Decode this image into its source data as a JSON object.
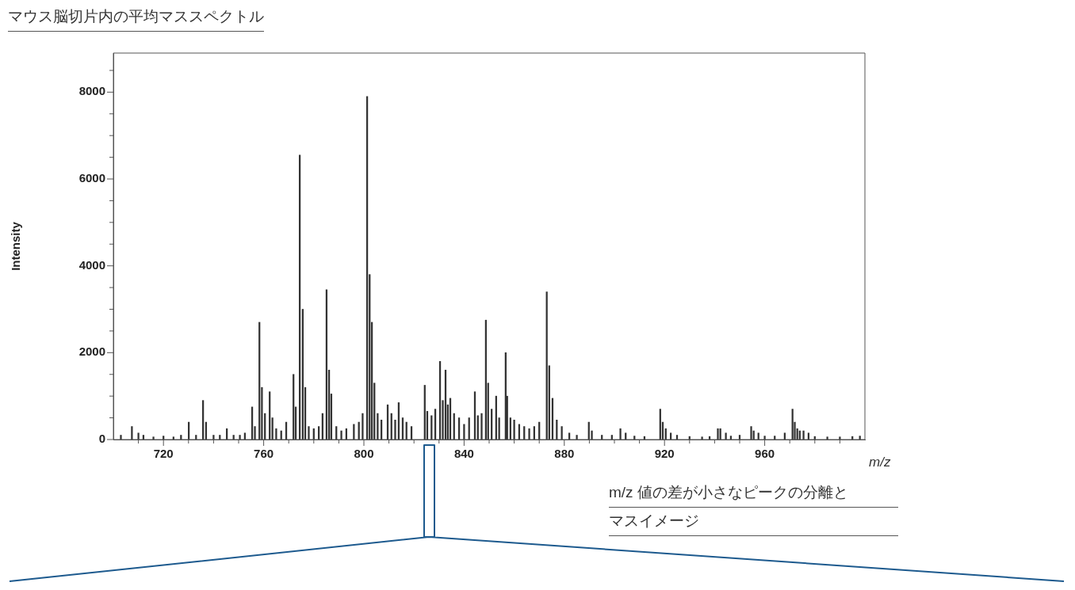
{
  "chart_data": {
    "type": "bar",
    "title": "マウス脳切片内の平均マススペクトル",
    "xlabel": "m/z",
    "ylabel": "Intensity",
    "annotations": [
      "m/z 値の差が小さなピークの分離と",
      "マスイメージ"
    ],
    "x": [
      703,
      707.4,
      710,
      712,
      716,
      720,
      724,
      727,
      730.1,
      733,
      735.8,
      737,
      740,
      742.5,
      745.3,
      748,
      750.5,
      752.5,
      755.4,
      756.5,
      758.3,
      759.3,
      760.5,
      762.4,
      763.5,
      765,
      767,
      769,
      771.9,
      772.8,
      774.4,
      775.6,
      776.6,
      778,
      780,
      782,
      783.5,
      785.1,
      786.1,
      787,
      789,
      791,
      793,
      796,
      798,
      799.5,
      801.3,
      802.3,
      803.2,
      804.2,
      805.5,
      807,
      809.5,
      811,
      812.5,
      813.9,
      815.5,
      817,
      819,
      824.3,
      825.3,
      827,
      828.5,
      830.4,
      831.5,
      832.6,
      833.5,
      834.5,
      836,
      838,
      840,
      842,
      844.3,
      845.5,
      847,
      848.7,
      849.6,
      851,
      852.8,
      854,
      856.6,
      857.2,
      858.5,
      860,
      862,
      864,
      866,
      868,
      870,
      873,
      874,
      875.3,
      877,
      879,
      882,
      885,
      889.8,
      891,
      895,
      899,
      902.4,
      904.5,
      908,
      912,
      918.3,
      919.3,
      920.5,
      922.5,
      925,
      930,
      935,
      938,
      941.3,
      942.3,
      944.5,
      946.5,
      950,
      954.6,
      955.6,
      957.5,
      960,
      964,
      968,
      971.1,
      972,
      973,
      974,
      975.5,
      977.5,
      980,
      985,
      990,
      995,
      998
    ],
    "series": [
      {
        "color": "#333333",
        "values": [
          100,
          300,
          150,
          100,
          60,
          80,
          60,
          100,
          400,
          100,
          900,
          400,
          100,
          100,
          250,
          100,
          100,
          150,
          750,
          300,
          2700,
          1200,
          600,
          1100,
          500,
          250,
          200,
          400,
          1500,
          750,
          6550,
          3000,
          1200,
          300,
          250,
          300,
          600,
          3450,
          1600,
          1050,
          300,
          200,
          250,
          350,
          400,
          600,
          7900,
          3800,
          2700,
          1300,
          600,
          450,
          800,
          600,
          450,
          850,
          500,
          400,
          300,
          1250,
          650,
          550,
          700,
          1800,
          900,
          1600,
          800,
          950,
          600,
          500,
          350,
          500,
          1100,
          550,
          600,
          2750,
          1300,
          700,
          1000,
          500,
          2000,
          1000,
          500,
          450,
          350,
          300,
          250,
          300,
          400,
          3400,
          1700,
          950,
          450,
          300,
          150,
          100,
          400,
          200,
          100,
          100,
          250,
          150,
          80,
          70,
          700,
          400,
          250,
          150,
          100,
          70,
          60,
          70,
          250,
          250,
          150,
          80,
          100,
          300,
          200,
          150,
          80,
          80,
          150,
          700,
          400,
          250,
          200,
          200,
          150,
          70,
          60,
          60,
          70,
          80
        ]
      }
    ],
    "xlim": [
      700,
      1000
    ],
    "xticks": [
      {
        "value": 710,
        "label": null
      },
      720,
      {
        "value": 730,
        "label": null
      },
      {
        "value": 740,
        "label": null
      },
      {
        "value": 750,
        "label": null
      },
      760,
      {
        "value": 770,
        "label": null
      },
      {
        "value": 780,
        "label": null
      },
      {
        "value": 790,
        "label": null
      },
      800,
      {
        "value": 810,
        "label": null
      },
      {
        "value": 820,
        "label": null
      },
      {
        "value": 830,
        "label": null
      },
      840,
      {
        "value": 850,
        "label": null
      },
      {
        "value": 860,
        "label": null
      },
      {
        "value": 870,
        "label": null
      },
      880,
      {
        "value": 890,
        "label": null
      },
      {
        "value": 900,
        "label": null
      },
      {
        "value": 910,
        "label": null
      },
      920,
      {
        "value": 930,
        "label": null
      },
      {
        "value": 940,
        "label": null
      },
      {
        "value": 950,
        "label": null
      },
      960,
      {
        "value": 970,
        "label": null
      },
      {
        "value": 980,
        "label": null
      },
      {
        "value": 990,
        "label": null
      }
    ],
    "ylim": [
      0,
      8900
    ],
    "yticks": [
      0,
      {
        "value": 500,
        "label": null
      },
      {
        "value": 1000,
        "label": null
      },
      {
        "value": 1500,
        "label": null
      },
      2000,
      {
        "value": 2500,
        "label": null
      },
      {
        "value": 3000,
        "label": null
      },
      {
        "value": 3500,
        "label": null
      },
      4000,
      {
        "value": 4500,
        "label": null
      },
      {
        "value": 5000,
        "label": null
      },
      {
        "value": 5500,
        "label": null
      },
      6000,
      {
        "value": 6500,
        "label": null
      },
      {
        "value": 7000,
        "label": null
      },
      {
        "value": 7500,
        "label": null
      },
      8000,
      {
        "value": 8500,
        "label": null
      }
    ]
  }
}
